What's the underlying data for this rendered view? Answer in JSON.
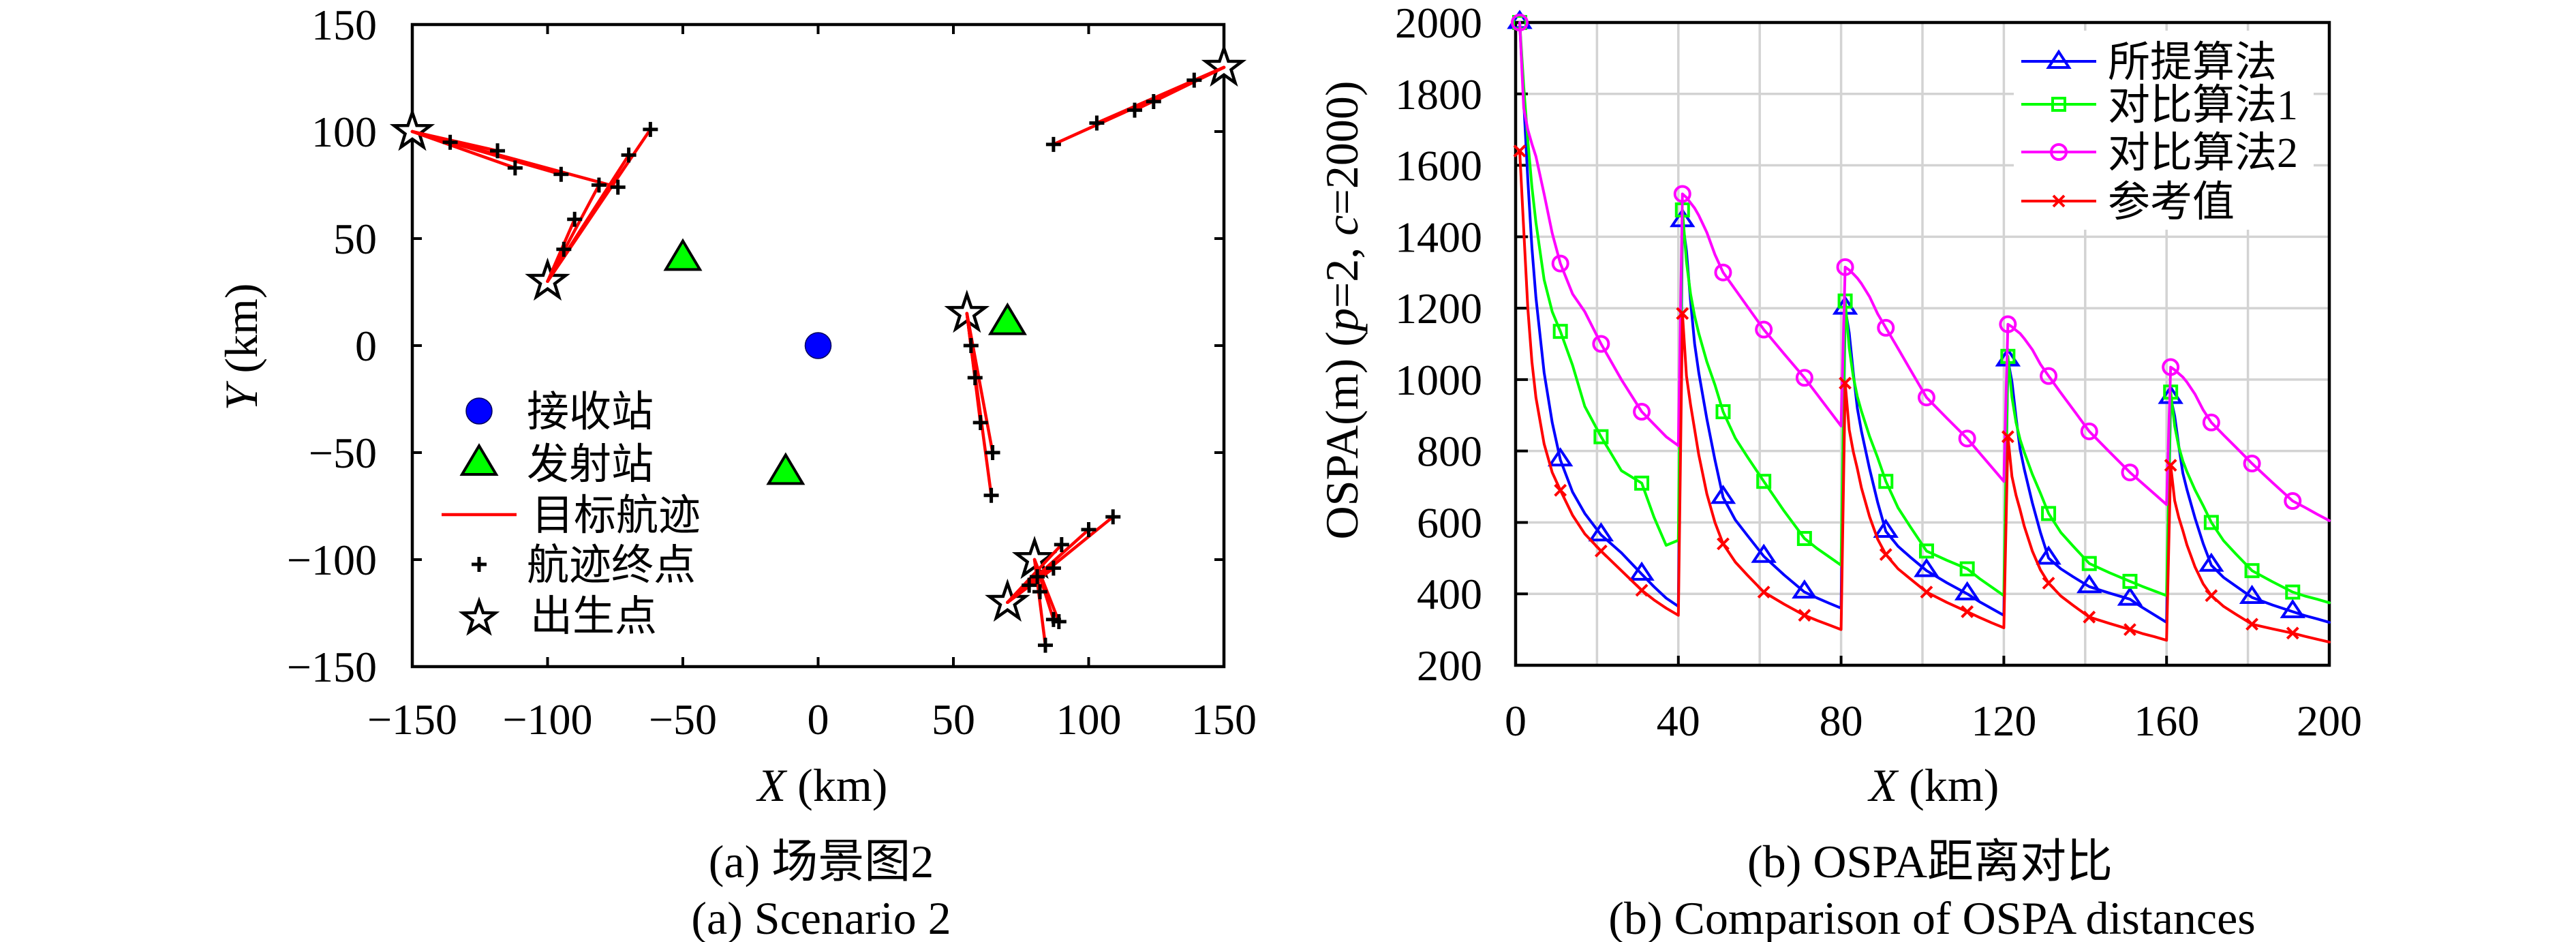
{
  "chart_data": [
    {
      "type": "scatter",
      "title": "(a) 场景图2",
      "subtitle": "(a) Scenario 2",
      "xlabel": "X (km)",
      "xlabel_parts": [
        "X",
        " (km)"
      ],
      "ylabel": "Y (km)",
      "ylabel_parts": [
        "Y",
        " (km)"
      ],
      "xlim": [
        -150,
        150
      ],
      "ylim": [
        -150,
        150
      ],
      "xticks": [
        -150,
        -100,
        -50,
        0,
        50,
        100,
        150
      ],
      "xticklabels": [
        "−150",
        "−100",
        "−50",
        "0",
        "50",
        "100",
        "150"
      ],
      "yticks": [
        -150,
        -100,
        -50,
        0,
        50,
        100,
        150
      ],
      "yticklabels": [
        "−150",
        "−100",
        "−50",
        "0",
        "50",
        "100",
        "150"
      ],
      "grid": false,
      "legend_position": "center-left",
      "legend": [
        {
          "label": "接收站",
          "marker": "filled-circle",
          "color": "#0000ff"
        },
        {
          "label": "发射站",
          "marker": "filled-triangle",
          "color": "#00ff00"
        },
        {
          "label": "目标航迹",
          "marker": "line",
          "color": "#ff0000"
        },
        {
          "label": "航迹终点",
          "marker": "plus",
          "color": "#000000"
        },
        {
          "label": "出生点",
          "marker": "star",
          "color": "#000000"
        }
      ],
      "receiver_stations": [
        [
          0,
          0
        ]
      ],
      "transmitter_stations": [
        [
          -50,
          40
        ],
        [
          70,
          10
        ],
        [
          -12,
          -60
        ]
      ],
      "birth_points": [
        [
          -150,
          100
        ],
        [
          -100,
          30
        ],
        [
          150,
          130
        ],
        [
          55,
          15
        ],
        [
          80,
          -100
        ],
        [
          70,
          -120
        ]
      ],
      "tracks": [
        {
          "birth": 0,
          "end": [
            -136,
            95
          ]
        },
        {
          "birth": 0,
          "end": [
            -118.5,
            91
          ]
        },
        {
          "birth": 0,
          "end": [
            -112,
            83
          ]
        },
        {
          "birth": 0,
          "end": [
            -95,
            80
          ]
        },
        {
          "birth": 0,
          "end": [
            -74,
            74
          ]
        },
        {
          "birth": 1,
          "end": [
            -94,
            45
          ]
        },
        {
          "birth": 1,
          "end": [
            -90,
            59
          ]
        },
        {
          "birth": 1,
          "end": [
            -81,
            75
          ]
        },
        {
          "birth": 1,
          "end": [
            -70,
            89
          ]
        },
        {
          "birth": 1,
          "end": [
            -62,
            101
          ]
        },
        {
          "birth": 2,
          "end": [
            139,
            124
          ]
        },
        {
          "birth": 2,
          "end": [
            124,
            114
          ]
        },
        {
          "birth": 2,
          "end": [
            117,
            110
          ]
        },
        {
          "birth": 2,
          "end": [
            103,
            104
          ]
        },
        {
          "birth": 2,
          "end": [
            87,
            94
          ]
        },
        {
          "birth": 3,
          "end": [
            56.5,
            0
          ]
        },
        {
          "birth": 3,
          "end": [
            58,
            -15
          ]
        },
        {
          "birth": 3,
          "end": [
            60,
            -36
          ]
        },
        {
          "birth": 3,
          "end": [
            64.5,
            -50
          ]
        },
        {
          "birth": 3,
          "end": [
            64,
            -70
          ]
        },
        {
          "birth": 4,
          "end": [
            82,
            -115
          ]
        },
        {
          "birth": 4,
          "end": [
            87,
            -128
          ]
        },
        {
          "birth": 4,
          "end": [
            89,
            -129
          ]
        },
        {
          "birth": 4,
          "end": [
            84,
            -140
          ]
        },
        {
          "birth": 5,
          "end": [
            109,
            -80
          ]
        },
        {
          "birth": 5,
          "end": [
            100,
            -86
          ]
        },
        {
          "birth": 5,
          "end": [
            90,
            -93
          ]
        },
        {
          "birth": 5,
          "end": [
            87,
            -104
          ]
        },
        {
          "birth": 5,
          "end": [
            81,
            -108
          ]
        },
        {
          "birth": 5,
          "end": [
            78,
            -112
          ]
        }
      ]
    },
    {
      "type": "line",
      "title": "(b) OSPA距离对比",
      "subtitle": "(b) Comparison of OSPA distances",
      "xlabel": "X (km)",
      "xlabel_parts": [
        "X",
        " (km)"
      ],
      "ylabel": "OSPA(m) (p=2, c=2000)",
      "ylabel_parts": [
        "OSPA(m) (",
        "p",
        "=2, ",
        "c",
        "=2000)"
      ],
      "xlim": [
        0,
        200
      ],
      "ylim": [
        200,
        2000
      ],
      "xticks": [
        0,
        40,
        80,
        120,
        160,
        200
      ],
      "xticklabels": [
        "0",
        "40",
        "80",
        "120",
        "160",
        "200"
      ],
      "yticks": [
        200,
        400,
        600,
        800,
        1000,
        1200,
        1400,
        1600,
        1800,
        2000
      ],
      "yticklabels": [
        "200",
        "400",
        "600",
        "800",
        "1000",
        "1200",
        "1400",
        "1600",
        "1800",
        "2000"
      ],
      "grid": true,
      "grid_x_step": 20,
      "grid_y_step": 200,
      "legend_position": "top-right",
      "x": [
        1,
        2,
        3,
        4,
        5,
        7,
        9,
        11,
        14,
        17,
        21,
        26,
        31,
        34,
        37,
        40,
        41,
        42,
        43,
        44,
        45,
        47,
        49,
        51,
        54,
        57,
        61,
        66,
        71,
        74,
        77,
        80,
        81,
        82,
        83,
        84,
        85,
        87,
        89,
        91,
        94,
        97,
        101,
        106,
        111,
        114,
        117,
        120,
        121,
        122,
        123,
        124,
        125,
        127,
        129,
        131,
        134,
        137,
        141,
        146,
        151,
        154,
        157,
        160,
        161,
        162,
        163,
        164,
        165,
        167,
        169,
        171,
        174,
        177,
        181,
        186,
        191,
        194,
        197,
        200
      ],
      "marker_x": [
        1,
        11,
        21,
        31,
        41,
        51,
        61,
        71,
        81,
        91,
        101,
        111,
        121,
        131,
        141,
        151,
        161,
        171,
        181,
        191
      ],
      "series": [
        {
          "name": "所提算法",
          "color": "#0000ff",
          "marker": "triangle",
          "values": [
            2000,
            1780,
            1560,
            1370,
            1230,
            1020,
            880,
            775,
            685,
            625,
            565,
            515,
            455,
            420,
            388,
            365,
            1445,
            1360,
            1220,
            1100,
            1020,
            890,
            775,
            670,
            607,
            563,
            505,
            453,
            405,
            389,
            374,
            360,
            1200,
            1131,
            1019,
            919,
            856,
            750,
            656,
            575,
            533,
            503,
            465,
            431,
            400,
            378,
            359,
            340,
            1055,
            994,
            894,
            805,
            750,
            655,
            572,
            500,
            470,
            448,
            420,
            402,
            385,
            362,
            341,
            320,
            950,
            898,
            814,
            738,
            692,
            612,
            541,
            480,
            446,
            422,
            390,
            369,
            350,
            339,
            330,
            320
          ]
        },
        {
          "name": "对比算法1",
          "color": "#00ff00",
          "marker": "square",
          "values": [
            2000,
            1820,
            1670,
            1540,
            1440,
            1280,
            1190,
            1135,
            1040,
            925,
            840,
            745,
            710,
            615,
            536,
            550,
            1475,
            1330,
            1240,
            1178,
            1130,
            1050,
            985,
            910,
            836,
            783,
            715,
            632,
            555,
            528,
            504,
            480,
            1220,
            1089,
            1008,
            952,
            912,
            841,
            781,
            715,
            641,
            588,
            520,
            494,
            470,
            443,
            419,
            395,
            1065,
            951,
            880,
            832,
            797,
            735,
            682,
            625,
            572,
            534,
            485,
            459,
            435,
            421,
            408,
            395,
            965,
            870,
            812,
            772,
            742,
            691,
            647,
            600,
            549,
            512,
            465,
            434,
            405,
            394,
            385,
            375
          ]
        },
        {
          "name": "对比算法2",
          "color": "#ff00ff",
          "marker": "circle",
          "values": [
            2000,
            1760,
            1700,
            1660,
            1625,
            1520,
            1410,
            1325,
            1240,
            1190,
            1100,
            1000,
            910,
            875,
            840,
            815,
            1520,
            1510,
            1495,
            1480,
            1460,
            1412,
            1350,
            1300,
            1252,
            1204,
            1140,
            1072,
            1005,
            960,
            915,
            870,
            1315,
            1307,
            1296,
            1284,
            1269,
            1232,
            1184,
            1145,
            1087,
            1028,
            950,
            892,
            835,
            795,
            755,
            715,
            1155,
            1148,
            1138,
            1129,
            1115,
            1084,
            1043,
            1010,
            963,
            917,
            855,
            797,
            740,
            710,
            680,
            650,
            1035,
            1027,
            1017,
            1007,
            993,
            959,
            915,
            880,
            845,
            811,
            765,
            712,
            660,
            642,
            623,
            605
          ]
        },
        {
          "name": "参考值",
          "color": "#ff0000",
          "marker": "x",
          "values": [
            1640,
            1420,
            1200,
            1050,
            950,
            820,
            740,
            690,
            620,
            568,
            520,
            465,
            410,
            383,
            360,
            340,
            1185,
            1010,
            930,
            860,
            790,
            680,
            600,
            540,
            489,
            452,
            405,
            371,
            340,
            326,
            313,
            300,
            990,
            860,
            798,
            750,
            697,
            616,
            553,
            510,
            470,
            442,
            405,
            376,
            350,
            334,
            319,
            305,
            840,
            729,
            676,
            635,
            590,
            520,
            467,
            430,
            394,
            368,
            335,
            317,
            300,
            289,
            280,
            270,
            760,
            661,
            614,
            577,
            537,
            475,
            428,
            395,
            365,
            343,
            315,
            302,
            290,
            281,
            273,
            265
          ]
        }
      ]
    }
  ]
}
